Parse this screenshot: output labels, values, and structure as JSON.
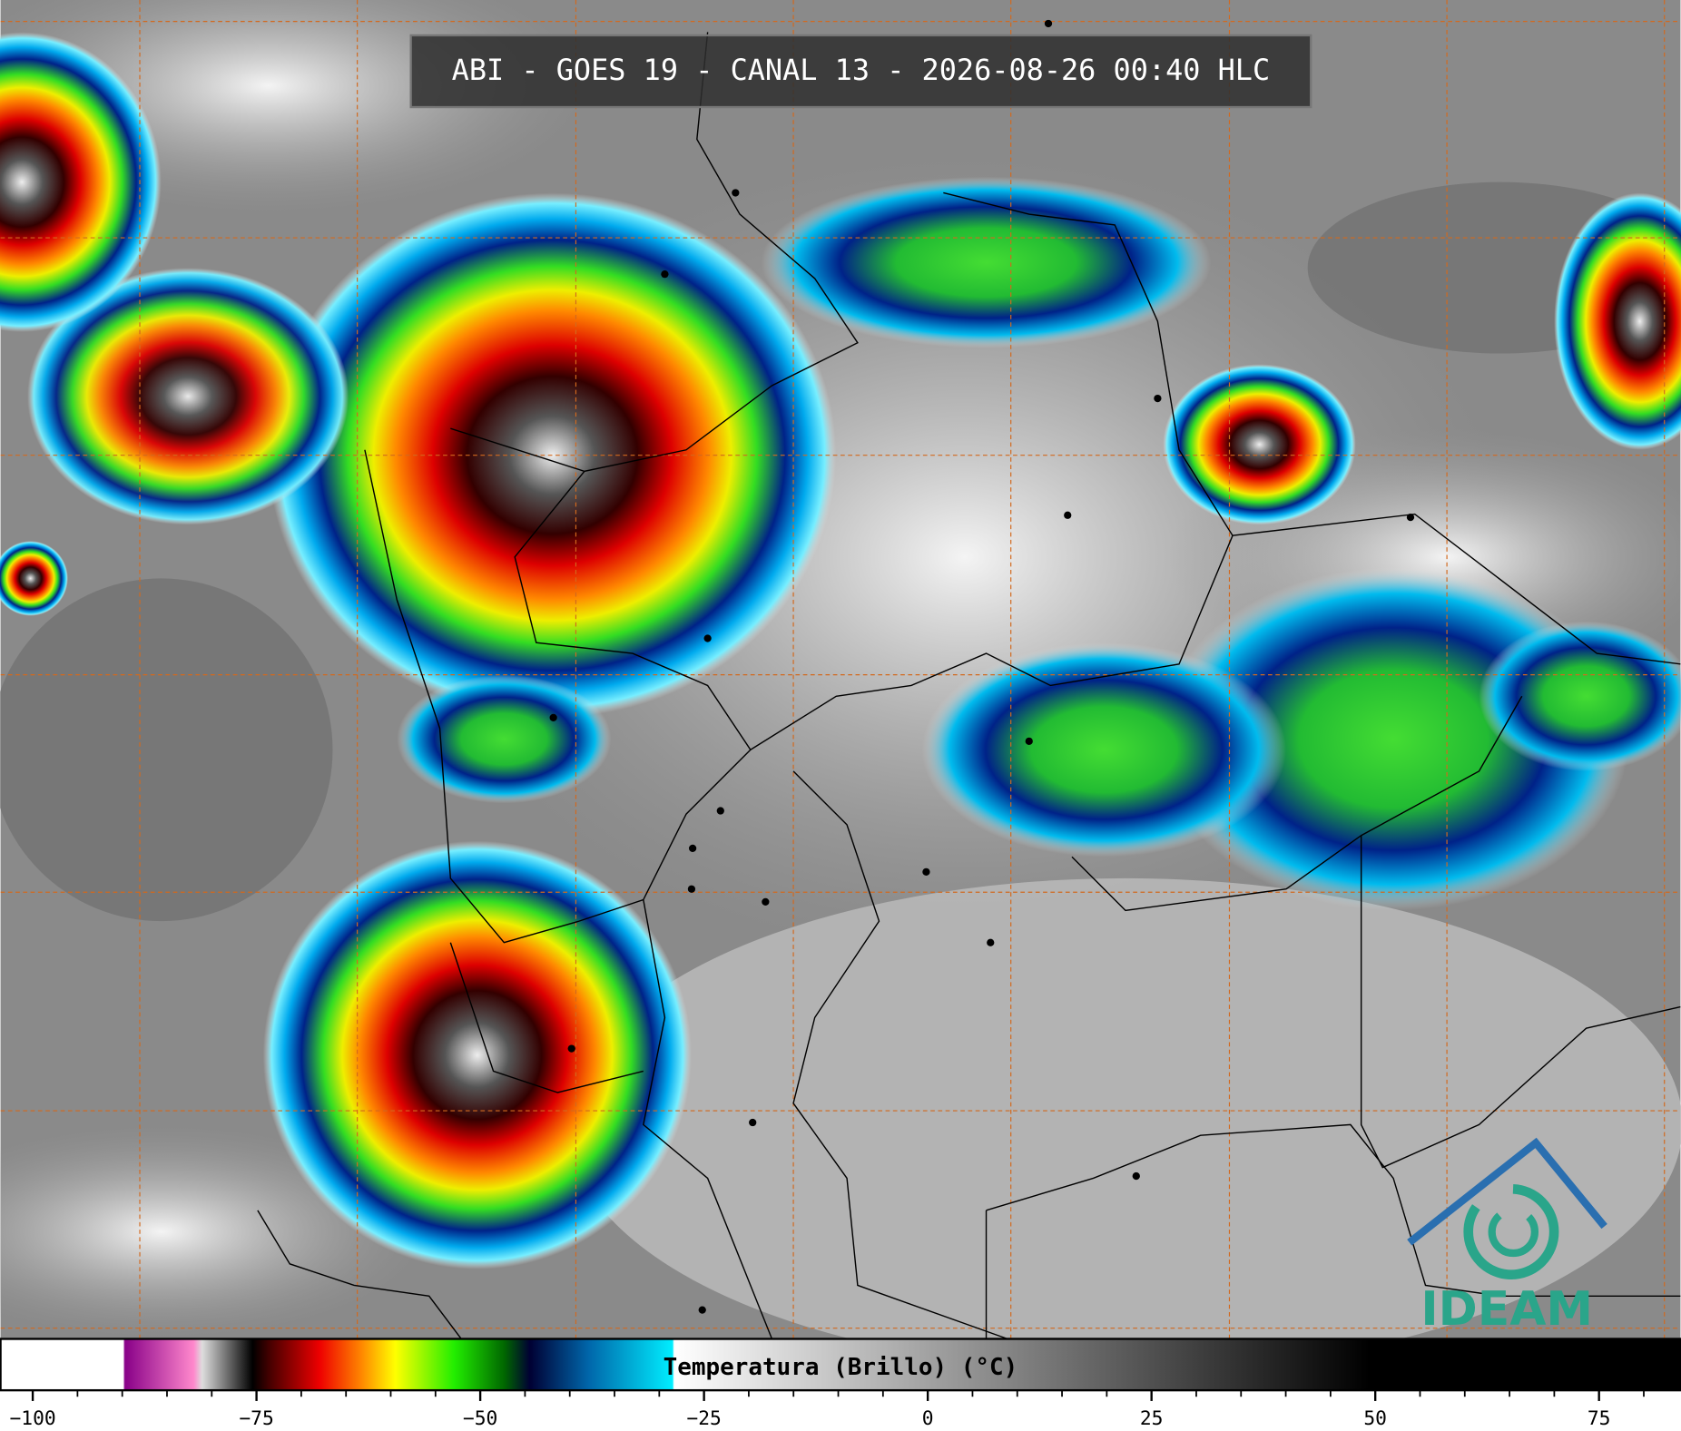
{
  "title": "ABI - GOES 19 - CANAL 13 - 2026-08-26 00:40 HLC",
  "logo": "IDEAM",
  "colorbar": {
    "label": "Temperatura (Brillo) (°C)",
    "lim": [
      -103.6,
      84.1
    ],
    "ticks": [
      {
        "value": -100,
        "label": "−100"
      },
      {
        "value": -75,
        "label": "−75"
      },
      {
        "value": -50,
        "label": "−50"
      },
      {
        "value": -25,
        "label": "−25"
      },
      0,
      25,
      50,
      75
    ],
    "minor_ticks": [
      -95,
      -90,
      -85,
      -80,
      -70,
      -65,
      -60,
      -55,
      -45,
      -40,
      -35,
      -30,
      -20,
      -15,
      -10,
      -5,
      5,
      10,
      15,
      20,
      30,
      35,
      40,
      45,
      55,
      60,
      65,
      70,
      80
    ]
  }
}
